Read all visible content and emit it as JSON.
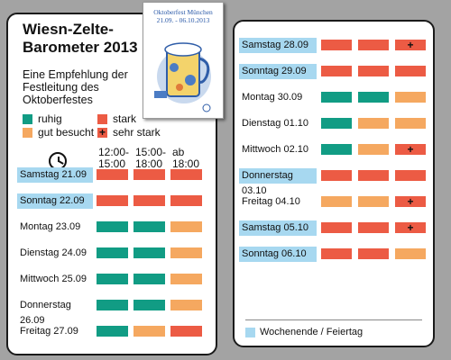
{
  "colors": {
    "ruhig": "#119c84",
    "gut_besucht": "#f5a860",
    "stark": "#ec5b44",
    "weekend": "#a7d8f0"
  },
  "title": "Wiesn-Zelte-Barometer 2013",
  "subtitle": "Eine Empfehlung der Festleitung des Oktoberfestes",
  "poster": {
    "title": "Oktoberfest München",
    "dates": "21.09. - 06.10.2013"
  },
  "legend": {
    "ruhig": "ruhig",
    "stark": "stark",
    "gut_besucht": "gut besucht",
    "sehr_stark": "sehr stark",
    "plus": "+"
  },
  "time_slots": [
    {
      "line1": "12:00-",
      "line2": "15:00"
    },
    {
      "line1": "15:00-",
      "line2": "18:00"
    },
    {
      "line1": "ab",
      "line2": "18:00"
    }
  ],
  "clock_icon": "clock-icon",
  "left_days": [
    {
      "label": "Samstag 21.09",
      "weekend": true,
      "levels": [
        "stark",
        "stark",
        "stark"
      ]
    },
    {
      "label": "Sonntag 22.09",
      "weekend": true,
      "levels": [
        "stark",
        "stark",
        "stark"
      ]
    },
    {
      "label": "Montag 23.09",
      "weekend": false,
      "levels": [
        "ruhig",
        "ruhig",
        "gut_besucht"
      ]
    },
    {
      "label": "Dienstag 24.09",
      "weekend": false,
      "levels": [
        "ruhig",
        "ruhig",
        "gut_besucht"
      ]
    },
    {
      "label": "Mittwoch 25.09",
      "weekend": false,
      "levels": [
        "ruhig",
        "ruhig",
        "gut_besucht"
      ]
    },
    {
      "label": "Donnerstag 26.09",
      "weekend": false,
      "levels": [
        "ruhig",
        "ruhig",
        "gut_besucht"
      ]
    },
    {
      "label": "Freitag 27.09",
      "weekend": false,
      "levels": [
        "ruhig",
        "gut_besucht",
        "stark"
      ]
    }
  ],
  "right_days": [
    {
      "label": "Samstag 28.09",
      "weekend": true,
      "levels": [
        "stark",
        "stark",
        "sehr_stark"
      ]
    },
    {
      "label": "Sonntag 29.09",
      "weekend": true,
      "levels": [
        "stark",
        "stark",
        "stark"
      ]
    },
    {
      "label": "Montag 30.09",
      "weekend": false,
      "levels": [
        "ruhig",
        "ruhig",
        "gut_besucht"
      ]
    },
    {
      "label": "Dienstag 01.10",
      "weekend": false,
      "levels": [
        "ruhig",
        "gut_besucht",
        "gut_besucht"
      ]
    },
    {
      "label": "Mittwoch 02.10",
      "weekend": false,
      "levels": [
        "ruhig",
        "gut_besucht",
        "sehr_stark"
      ]
    },
    {
      "label": "Donnerstag 03.10",
      "weekend": true,
      "levels": [
        "stark",
        "stark",
        "stark"
      ]
    },
    {
      "label": "Freitag 04.10",
      "weekend": false,
      "levels": [
        "gut_besucht",
        "gut_besucht",
        "sehr_stark"
      ]
    },
    {
      "label": "Samstag 05.10",
      "weekend": true,
      "levels": [
        "stark",
        "stark",
        "sehr_stark"
      ]
    },
    {
      "label": "Sonntag 06.10",
      "weekend": true,
      "levels": [
        "stark",
        "stark",
        "gut_besucht"
      ]
    }
  ],
  "footer_legend": "Wochenende / Feiertag"
}
